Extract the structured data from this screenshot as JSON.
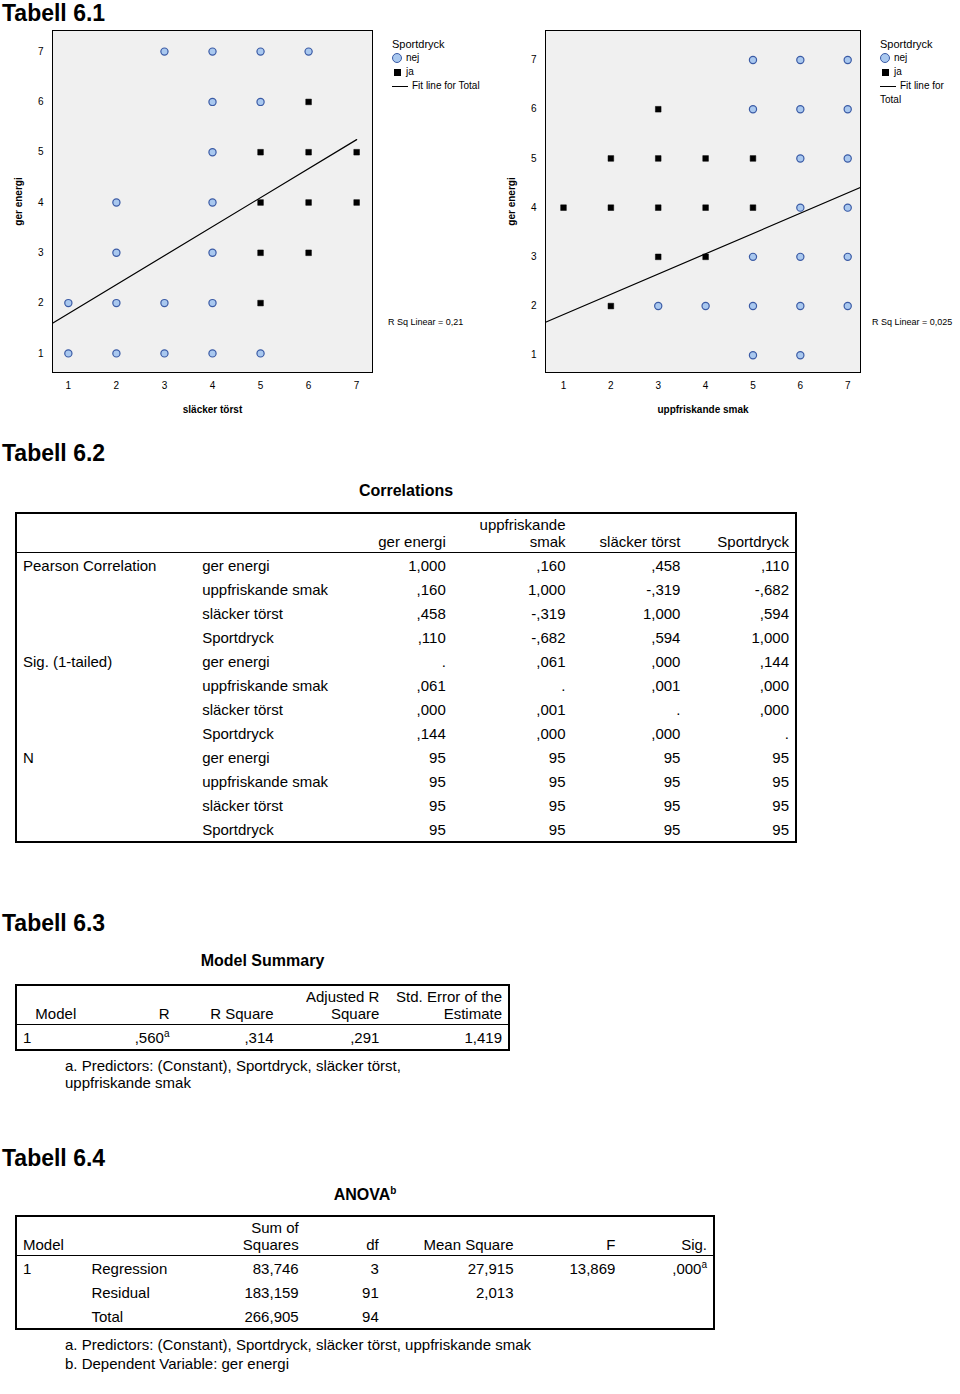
{
  "chart_data": [
    {
      "type": "scatter",
      "x_label": "släcker törst",
      "y_label": "ger energi",
      "legend_title": "Sportdryck",
      "annotation": "R Sq Linear = 0,21",
      "xlim": [
        0.67,
        7.33
      ],
      "ylim": [
        0.62,
        7.42
      ],
      "xticks": [
        1,
        2,
        3,
        4,
        5,
        6,
        7
      ],
      "yticks": [
        1,
        2,
        3,
        4,
        5,
        6,
        7
      ],
      "series": [
        {
          "name": "nej",
          "type": "scatter",
          "marker": "circle",
          "color": "#a9c8ef",
          "x": [
            3,
            4,
            5,
            6,
            4,
            5,
            4,
            2,
            4,
            2,
            4,
            1,
            2,
            3,
            4,
            1,
            2,
            3,
            4,
            5
          ],
          "y": [
            7,
            7,
            7,
            7,
            6,
            6,
            5,
            4,
            4,
            3,
            3,
            2,
            2,
            2,
            2,
            1,
            1,
            1,
            1,
            1
          ]
        },
        {
          "name": "ja",
          "type": "scatter",
          "marker": "square",
          "color": "#000000",
          "x": [
            6,
            5,
            6,
            7,
            5,
            6,
            7,
            5,
            6,
            5
          ],
          "y": [
            6,
            5,
            5,
            5,
            4,
            4,
            4,
            3,
            3,
            2
          ]
        },
        {
          "name": "Fit line for Total",
          "type": "line",
          "line_style": "solid",
          "color": "#000000",
          "x": [
            0.67,
            7.0
          ],
          "y": [
            1.6,
            5.25
          ]
        }
      ]
    },
    {
      "type": "scatter",
      "x_label": "uppfriskande smak",
      "y_label": "ger energi",
      "legend_title": "Sportdryck",
      "annotation": "R Sq Linear = 0,025",
      "xlim": [
        0.62,
        7.27
      ],
      "ylim": [
        0.65,
        7.6
      ],
      "xticks": [
        1,
        2,
        3,
        4,
        5,
        6,
        7
      ],
      "yticks": [
        1,
        2,
        3,
        4,
        5,
        6,
        7
      ],
      "series": [
        {
          "name": "nej",
          "type": "scatter",
          "marker": "circle",
          "color": "#a9c8ef",
          "x": [
            5,
            6,
            7,
            5,
            6,
            7,
            6,
            7,
            6,
            7,
            5,
            6,
            7,
            3,
            4,
            5,
            6,
            7,
            5,
            6
          ],
          "y": [
            7,
            7,
            7,
            6,
            6,
            6,
            5,
            5,
            4,
            4,
            3,
            3,
            3,
            2,
            2,
            2,
            2,
            2,
            1,
            1
          ]
        },
        {
          "name": "ja",
          "type": "scatter",
          "marker": "square",
          "color": "#000000",
          "x": [
            3,
            2,
            3,
            4,
            5,
            1,
            2,
            3,
            4,
            5,
            3,
            4,
            2
          ],
          "y": [
            6,
            5,
            5,
            5,
            5,
            4,
            4,
            4,
            4,
            4,
            3,
            3,
            2
          ]
        },
        {
          "name": "Fit line for Total",
          "type": "line",
          "line_style": "solid",
          "color": "#000000",
          "x": [
            0.62,
            7.27
          ],
          "y": [
            1.67,
            4.41
          ]
        }
      ]
    }
  ],
  "document": {
    "chart_heading": "Tabell 6.1",
    "tables": [
      {
        "heading": "Tabell 6.2",
        "title": "Correlations",
        "header": [
          null,
          null,
          "ger energi",
          "uppfriskande smak",
          "släcker törst",
          "Sportdryck"
        ],
        "rows": [
          [
            "Pearson Correlation",
            "ger energi",
            "1,000",
            ",160",
            ",458",
            ",110"
          ],
          [
            null,
            "uppfriskande smak",
            ",160",
            "1,000",
            "-,319",
            "-,682"
          ],
          [
            null,
            "släcker törst",
            ",458",
            "-,319",
            "1,000",
            ",594"
          ],
          [
            null,
            "Sportdryck",
            ",110",
            "-,682",
            ",594",
            "1,000"
          ],
          [
            "Sig. (1-tailed)",
            "ger energi",
            ".",
            ",061",
            ",000",
            ",144"
          ],
          [
            null,
            "uppfriskande smak",
            ",061",
            ".",
            ",001",
            ",000"
          ],
          [
            null,
            "släcker törst",
            ",000",
            ",001",
            ".",
            ",000"
          ],
          [
            null,
            "Sportdryck",
            ",144",
            ",000",
            ",000",
            "."
          ],
          [
            "N",
            "ger energi",
            "95",
            "95",
            "95",
            "95"
          ],
          [
            null,
            "uppfriskande smak",
            "95",
            "95",
            "95",
            "95"
          ],
          [
            null,
            "släcker törst",
            "95",
            "95",
            "95",
            "95"
          ],
          [
            null,
            "Sportdryck",
            "95",
            "95",
            "95",
            "95"
          ]
        ],
        "footnotes": []
      },
      {
        "heading": "Tabell 6.3",
        "title": "Model Summary",
        "header": [
          "Model",
          "R",
          "R Square",
          "Adjusted R Square",
          "Std. Error of the Estimate"
        ],
        "rows": [
          [
            "1",
            {
              "text": ",560",
              "sup": "a"
            },
            ",314",
            ",291",
            "1,419"
          ]
        ],
        "footnotes": [
          "a. Predictors: (Constant), Sportdryck, släcker törst, uppfriskande smak"
        ]
      },
      {
        "heading": "Tabell 6.4",
        "title": {
          "text": "ANOVA",
          "sup": "b"
        },
        "header": [
          "Model",
          null,
          "Sum of Squares",
          "df",
          "Mean Square",
          "F",
          "Sig."
        ],
        "rows": [
          [
            "1",
            "Regression",
            "83,746",
            "3",
            "27,915",
            "13,869",
            {
              "text": ",000",
              "sup": "a"
            }
          ],
          [
            null,
            "Residual",
            "183,159",
            "91",
            "2,013",
            null,
            null
          ],
          [
            null,
            "Total",
            "266,905",
            "94",
            null,
            null,
            null
          ]
        ],
        "footnotes": [
          "a. Predictors: (Constant), Sportdryck, släcker törst, uppfriskande smak",
          "b. Dependent Variable: ger energi"
        ]
      }
    ]
  }
}
